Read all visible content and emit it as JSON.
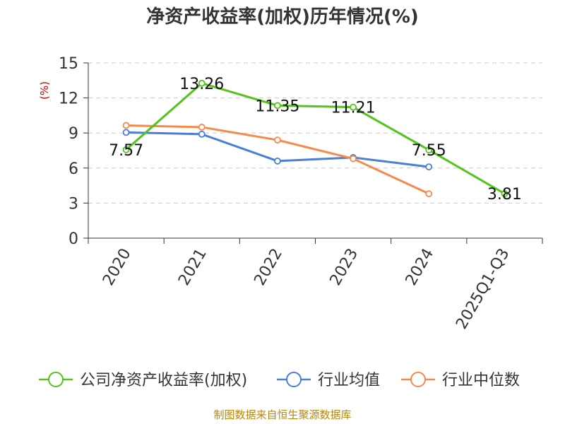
{
  "chart_data": {
    "type": "line",
    "title": "净资产收益率(加权)历年情况(%)",
    "ylabel": "(%)",
    "xlabel": "",
    "categories": [
      "2020",
      "2021",
      "2022",
      "2023",
      "2024",
      "2025Q1-Q3"
    ],
    "ylim": [
      0,
      15
    ],
    "yticks": [
      0,
      3,
      6,
      9,
      12,
      15
    ],
    "grid": true,
    "legend_position": "bottom",
    "series": [
      {
        "name": "公司净资产收益率(加权)",
        "color": "#52c41a",
        "values": [
          7.57,
          13.26,
          11.35,
          11.21,
          7.55,
          3.81
        ],
        "labels": [
          "7.57",
          "13.26",
          "11.35",
          "11.21",
          "7.55",
          "3.81"
        ]
      },
      {
        "name": "行业均值",
        "color": "#4a7fd8",
        "values": [
          9.05,
          8.9,
          6.6,
          6.9,
          6.1,
          null
        ]
      },
      {
        "name": "行业中位数",
        "color": "#f58a4b",
        "values": [
          9.65,
          9.5,
          8.4,
          6.8,
          3.8,
          null
        ]
      }
    ],
    "source": "制图数据来自恒生聚源数据库"
  }
}
